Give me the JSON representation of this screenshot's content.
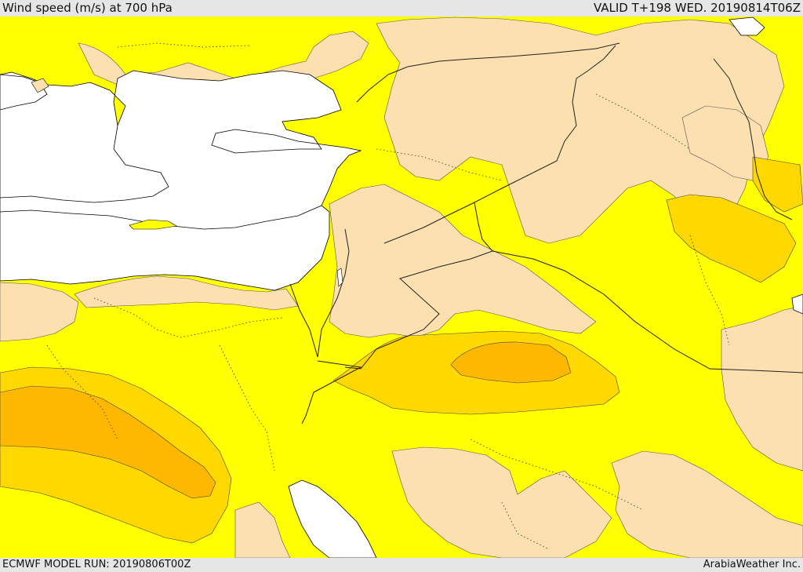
{
  "header": {
    "title": "Wind speed (m/s) at 700 hPa",
    "valid": "VALID T+198 WED. 20190814T06Z"
  },
  "footer": {
    "model_run": "ECMWF MODEL RUN: 20190806T00Z",
    "credit": "ArabiaWeather Inc."
  },
  "colors": {
    "sea": "#ffffff",
    "land_calm": "#fde0b0",
    "speed_low": "#ffff00",
    "speed_mid": "#ffd800",
    "speed_high": "#ffb800",
    "border_line": "#222222",
    "coast_line": "#000000"
  }
}
